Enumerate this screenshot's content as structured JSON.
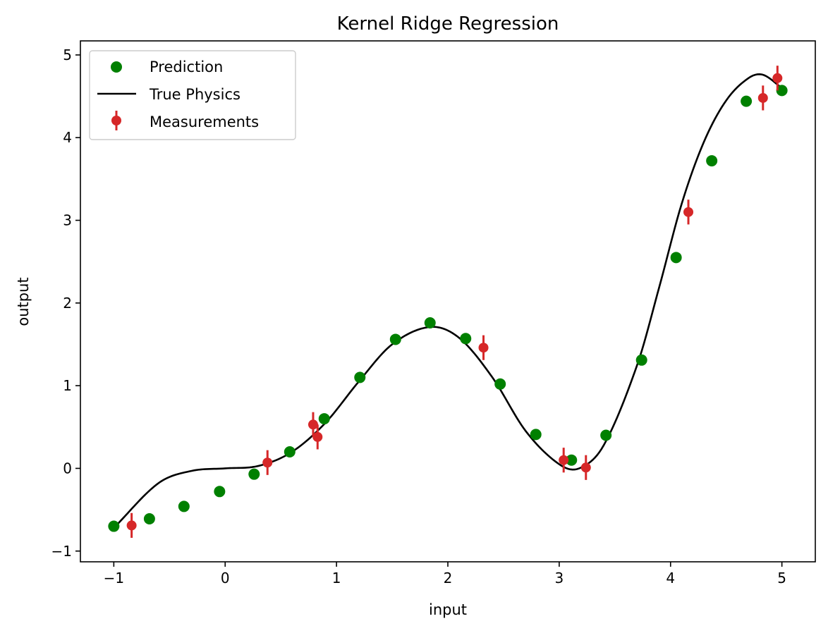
{
  "chart_data": {
    "type": "scatter",
    "title": "Kernel Ridge Regression",
    "xlabel": "input",
    "ylabel": "output",
    "xlim": [
      -1.3,
      5.3
    ],
    "ylim": [
      -1.13,
      5.17
    ],
    "xticks": [
      -1,
      0,
      1,
      2,
      3,
      4,
      5
    ],
    "yticks": [
      -1,
      0,
      1,
      2,
      3,
      4,
      5
    ],
    "grid": false,
    "legend_position": "top-left",
    "colors": {
      "prediction": "#008000",
      "true_physics": "#000000",
      "measurements": "#d62728"
    },
    "series": [
      {
        "name": "Prediction",
        "kind": "scatter",
        "x": [
          -1.0,
          -0.68,
          -0.37,
          -0.05,
          0.26,
          0.58,
          0.89,
          1.21,
          1.53,
          1.84,
          2.16,
          2.47,
          2.79,
          3.11,
          3.42,
          3.74,
          4.05,
          4.37,
          4.68,
          5.0
        ],
        "y": [
          -0.7,
          -0.61,
          -0.46,
          -0.28,
          -0.07,
          0.2,
          0.6,
          1.1,
          1.56,
          1.76,
          1.57,
          1.02,
          0.41,
          0.1,
          0.4,
          1.31,
          2.55,
          3.72,
          4.44,
          4.57
        ]
      },
      {
        "name": "True Physics",
        "kind": "line"
      },
      {
        "name": "Measurements",
        "kind": "errorbar",
        "x": [
          -0.84,
          0.38,
          0.79,
          0.83,
          2.32,
          3.04,
          3.24,
          4.16,
          4.83,
          4.96
        ],
        "y": [
          -0.69,
          0.07,
          0.53,
          0.38,
          1.46,
          0.1,
          0.01,
          3.1,
          4.48,
          4.72
        ],
        "yerr": 0.15
      }
    ]
  }
}
